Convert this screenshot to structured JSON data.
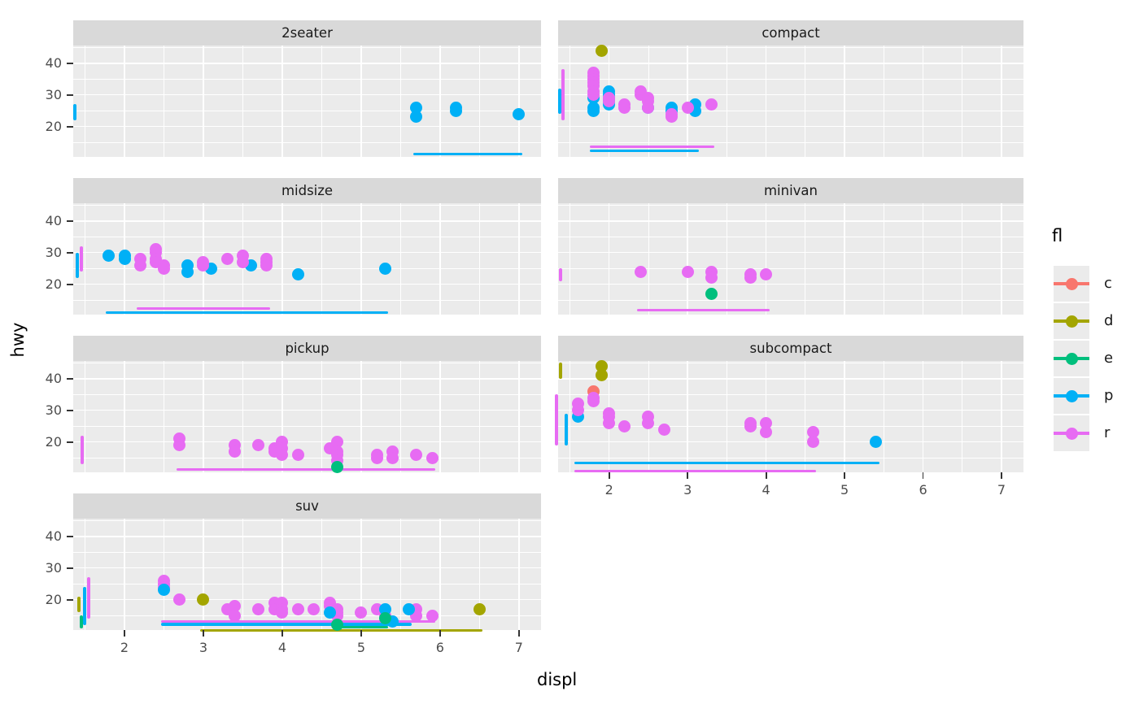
{
  "theme": {
    "page_bg": "#FFFFFF",
    "panel_bg": "#EBEBEB",
    "strip_bg": "#D9D9D9",
    "grid_color": "#FFFFFF",
    "tick_color": "#333333",
    "tick_label_color": "#4D4D4D",
    "legend_key_bg": "#EBEBEB"
  },
  "chart_data": {
    "type": "scatter",
    "title": "",
    "xlabel": "displ",
    "ylabel": "hwy",
    "x_ticks": [
      2,
      3,
      4,
      5,
      6,
      7
    ],
    "y_ticks": [
      20,
      30,
      40
    ],
    "x_minor_ticks": [
      1.5,
      2.5,
      3.5,
      4.5,
      5.5,
      6.5
    ],
    "y_minor_ticks": [
      15,
      25,
      35,
      45
    ],
    "x_domain": [
      1.35,
      7.28
    ],
    "y_domain": [
      10.4,
      45.6
    ],
    "grid": "on",
    "legend": {
      "title": "fl",
      "entries": [
        "c",
        "d",
        "e",
        "p",
        "r"
      ],
      "position": "right"
    },
    "series_colors": {
      "c": "#F8766D",
      "d": "#A3A500",
      "e": "#00BF7D",
      "p": "#00B0F6",
      "r": "#E76BF3"
    },
    "facets": [
      {
        "name": "2seater",
        "grid": [
          0,
          0
        ],
        "points": [
          [
            5.7,
            26,
            "p"
          ],
          [
            5.7,
            23,
            "p"
          ],
          [
            6.2,
            26,
            "p"
          ],
          [
            6.2,
            25,
            "p"
          ],
          [
            7.0,
            24,
            "p"
          ]
        ],
        "rugs_bottom": [
          {
            "fl": "p",
            "x0": 5.7,
            "x1": 7.0,
            "dy": 2
          }
        ],
        "rugs_left": [
          {
            "fl": "p",
            "y0": 23,
            "y1": 26,
            "dx": 0
          }
        ]
      },
      {
        "name": "compact",
        "grid": [
          0,
          1
        ],
        "points": [
          [
            1.9,
            44,
            "d"
          ],
          [
            1.8,
            29,
            "p"
          ],
          [
            1.8,
            26,
            "p"
          ],
          [
            1.8,
            25,
            "p"
          ],
          [
            2.0,
            31,
            "p"
          ],
          [
            2.0,
            30,
            "p"
          ],
          [
            2.0,
            29,
            "p"
          ],
          [
            2.0,
            28,
            "p"
          ],
          [
            2.0,
            27,
            "p"
          ],
          [
            2.5,
            26,
            "p"
          ],
          [
            2.8,
            26,
            "p"
          ],
          [
            2.8,
            25,
            "p"
          ],
          [
            3.1,
            27,
            "p"
          ],
          [
            3.1,
            25,
            "p"
          ],
          [
            1.8,
            37,
            "r"
          ],
          [
            1.8,
            36,
            "r"
          ],
          [
            1.8,
            35,
            "r"
          ],
          [
            1.8,
            34,
            "r"
          ],
          [
            1.8,
            33,
            "r"
          ],
          [
            1.8,
            31,
            "r"
          ],
          [
            1.8,
            30,
            "r"
          ],
          [
            2.0,
            29,
            "r"
          ],
          [
            2.0,
            28,
            "r"
          ],
          [
            2.2,
            27,
            "r"
          ],
          [
            2.2,
            26,
            "r"
          ],
          [
            2.4,
            31,
            "r"
          ],
          [
            2.4,
            30,
            "r"
          ],
          [
            2.5,
            29,
            "r"
          ],
          [
            2.5,
            28,
            "r"
          ],
          [
            2.5,
            26,
            "r"
          ],
          [
            2.8,
            24,
            "r"
          ],
          [
            2.8,
            23,
            "r"
          ],
          [
            3.0,
            26,
            "r"
          ],
          [
            3.3,
            27,
            "r"
          ]
        ],
        "rugs_bottom": [
          {
            "fl": "r",
            "x0": 1.8,
            "x1": 3.3,
            "dy": 11
          },
          {
            "fl": "p",
            "x0": 1.8,
            "x1": 3.1,
            "dy": 6
          }
        ],
        "rugs_left": [
          {
            "fl": "p",
            "y0": 25,
            "y1": 31,
            "dx": 0
          },
          {
            "fl": "r",
            "y0": 23,
            "y1": 37,
            "dx": 4
          }
        ]
      },
      {
        "name": "midsize",
        "grid": [
          1,
          0
        ],
        "points": [
          [
            1.8,
            29,
            "p"
          ],
          [
            2.0,
            29,
            "p"
          ],
          [
            2.0,
            28,
            "p"
          ],
          [
            2.8,
            26,
            "p"
          ],
          [
            2.8,
            24,
            "p"
          ],
          [
            3.1,
            25,
            "p"
          ],
          [
            3.6,
            26,
            "p"
          ],
          [
            4.2,
            23,
            "p"
          ],
          [
            5.3,
            25,
            "p"
          ],
          [
            2.2,
            28,
            "r"
          ],
          [
            2.2,
            26,
            "r"
          ],
          [
            2.4,
            31,
            "r"
          ],
          [
            2.4,
            30,
            "r"
          ],
          [
            2.4,
            28,
            "r"
          ],
          [
            2.4,
            27,
            "r"
          ],
          [
            2.5,
            26,
            "r"
          ],
          [
            2.5,
            25,
            "r"
          ],
          [
            3.0,
            27,
            "r"
          ],
          [
            3.0,
            26,
            "r"
          ],
          [
            3.3,
            28,
            "r"
          ],
          [
            3.5,
            29,
            "r"
          ],
          [
            3.5,
            27,
            "r"
          ],
          [
            3.8,
            28,
            "r"
          ],
          [
            3.8,
            27,
            "r"
          ],
          [
            3.8,
            26,
            "r"
          ]
        ],
        "rugs_bottom": [
          {
            "fl": "r",
            "x0": 2.2,
            "x1": 3.8,
            "dy": 6
          },
          {
            "fl": "p",
            "x0": 1.8,
            "x1": 5.3,
            "dy": 1
          }
        ],
        "rugs_left": [
          {
            "fl": "p",
            "y0": 23,
            "y1": 29,
            "dx": 3
          },
          {
            "fl": "r",
            "y0": 25,
            "y1": 31,
            "dx": 8
          }
        ]
      },
      {
        "name": "minivan",
        "grid": [
          1,
          1
        ],
        "points": [
          [
            2.4,
            24,
            "r"
          ],
          [
            3.0,
            24,
            "r"
          ],
          [
            3.3,
            24,
            "r"
          ],
          [
            3.3,
            22,
            "r"
          ],
          [
            3.8,
            23,
            "r"
          ],
          [
            3.8,
            22,
            "r"
          ],
          [
            4.0,
            23,
            "r"
          ],
          [
            3.3,
            17,
            "e"
          ]
        ],
        "rugs_bottom": [
          {
            "fl": "r",
            "x0": 2.4,
            "x1": 4.0,
            "dy": 4
          }
        ],
        "rugs_left": [
          {
            "fl": "r",
            "y0": 22,
            "y1": 24,
            "dx": 1
          }
        ]
      },
      {
        "name": "pickup",
        "grid": [
          2,
          0
        ],
        "points": [
          [
            2.7,
            21,
            "r"
          ],
          [
            2.7,
            19,
            "r"
          ],
          [
            3.4,
            19,
            "r"
          ],
          [
            3.4,
            17,
            "r"
          ],
          [
            3.7,
            19,
            "r"
          ],
          [
            3.9,
            18,
            "r"
          ],
          [
            3.9,
            17,
            "r"
          ],
          [
            4.0,
            20,
            "r"
          ],
          [
            4.0,
            18,
            "r"
          ],
          [
            4.0,
            16,
            "r"
          ],
          [
            4.2,
            16,
            "r"
          ],
          [
            4.6,
            18,
            "r"
          ],
          [
            4.7,
            20,
            "r"
          ],
          [
            4.7,
            17,
            "r"
          ],
          [
            4.7,
            16,
            "r"
          ],
          [
            4.7,
            14,
            "r"
          ],
          [
            5.2,
            16,
            "r"
          ],
          [
            5.2,
            15,
            "r"
          ],
          [
            5.4,
            17,
            "r"
          ],
          [
            5.4,
            15,
            "r"
          ],
          [
            5.7,
            16,
            "r"
          ],
          [
            5.9,
            15,
            "r"
          ],
          [
            4.7,
            12,
            "e"
          ]
        ],
        "rugs_bottom": [
          {
            "fl": "r",
            "x0": 2.7,
            "x1": 5.9,
            "dy": 2
          }
        ],
        "rugs_left": [
          {
            "fl": "r",
            "y0": 14,
            "y1": 21,
            "dx": 9
          }
        ]
      },
      {
        "name": "subcompact",
        "grid": [
          2,
          1
        ],
        "points": [
          [
            1.8,
            36,
            "c"
          ],
          [
            1.9,
            44,
            "d"
          ],
          [
            1.9,
            41,
            "d"
          ],
          [
            1.6,
            28,
            "p"
          ],
          [
            5.4,
            20,
            "p"
          ],
          [
            1.6,
            32,
            "r"
          ],
          [
            1.6,
            30,
            "r"
          ],
          [
            1.8,
            34,
            "r"
          ],
          [
            1.8,
            33,
            "r"
          ],
          [
            2.0,
            29,
            "r"
          ],
          [
            2.0,
            28,
            "r"
          ],
          [
            2.0,
            26,
            "r"
          ],
          [
            2.2,
            25,
            "r"
          ],
          [
            2.5,
            28,
            "r"
          ],
          [
            2.5,
            26,
            "r"
          ],
          [
            2.7,
            24,
            "r"
          ],
          [
            3.8,
            26,
            "r"
          ],
          [
            3.8,
            25,
            "r"
          ],
          [
            4.0,
            26,
            "r"
          ],
          [
            4.0,
            23,
            "r"
          ],
          [
            4.6,
            23,
            "r"
          ],
          [
            4.6,
            20,
            "r"
          ]
        ],
        "rugs_bottom": [
          {
            "fl": "p",
            "x0": 1.6,
            "x1": 5.4,
            "dy": 10
          },
          {
            "fl": "r",
            "x0": 1.6,
            "x1": 4.6,
            "dy": 0
          }
        ],
        "rugs_left": [
          {
            "fl": "r",
            "y0": 20,
            "y1": 34,
            "dx": -4
          },
          {
            "fl": "d",
            "y0": 41,
            "y1": 44,
            "dx": 1
          },
          {
            "fl": "p",
            "y0": 20,
            "y1": 28,
            "dx": 8
          }
        ]
      },
      {
        "name": "suv",
        "grid": [
          3,
          0
        ],
        "points": [
          [
            2.5,
            26,
            "r"
          ],
          [
            2.5,
            25,
            "r"
          ],
          [
            2.5,
            24,
            "r"
          ],
          [
            2.7,
            20,
            "r"
          ],
          [
            3.3,
            17,
            "r"
          ],
          [
            3.4,
            18,
            "r"
          ],
          [
            3.4,
            15,
            "r"
          ],
          [
            3.7,
            17,
            "r"
          ],
          [
            3.9,
            19,
            "r"
          ],
          [
            3.9,
            17,
            "r"
          ],
          [
            4.0,
            19,
            "r"
          ],
          [
            4.0,
            17,
            "r"
          ],
          [
            4.0,
            16,
            "r"
          ],
          [
            4.2,
            17,
            "r"
          ],
          [
            4.4,
            17,
            "r"
          ],
          [
            4.6,
            19,
            "r"
          ],
          [
            4.6,
            18,
            "r"
          ],
          [
            4.7,
            17,
            "r"
          ],
          [
            4.7,
            16,
            "r"
          ],
          [
            4.7,
            15,
            "r"
          ],
          [
            5.0,
            16,
            "r"
          ],
          [
            5.2,
            17,
            "r"
          ],
          [
            5.3,
            15,
            "r"
          ],
          [
            5.7,
            17,
            "r"
          ],
          [
            5.7,
            15,
            "r"
          ],
          [
            5.9,
            15,
            "r"
          ],
          [
            2.5,
            23,
            "p"
          ],
          [
            4.6,
            16,
            "p"
          ],
          [
            5.3,
            17,
            "p"
          ],
          [
            5.6,
            17,
            "p"
          ],
          [
            5.4,
            13,
            "p"
          ],
          [
            3.0,
            20,
            "d"
          ],
          [
            6.5,
            17,
            "d"
          ],
          [
            4.7,
            12,
            "e"
          ],
          [
            5.3,
            14,
            "e"
          ]
        ],
        "rugs_bottom": [
          {
            "fl": "r",
            "x0": 2.5,
            "x1": 5.9,
            "dy": 9
          },
          {
            "fl": "p",
            "x0": 2.5,
            "x1": 5.6,
            "dy": 5.5
          },
          {
            "fl": "e",
            "x0": 4.7,
            "x1": 5.3,
            "dy": 2
          },
          {
            "fl": "d",
            "x0": 3.0,
            "x1": 6.5,
            "dy": -2
          }
        ],
        "rugs_left": [
          {
            "fl": "d",
            "y0": 17,
            "y1": 20,
            "dx": 5
          },
          {
            "fl": "e",
            "y0": 12,
            "y1": 14,
            "dx": 8
          },
          {
            "fl": "p",
            "y0": 13,
            "y1": 23,
            "dx": 12
          },
          {
            "fl": "r",
            "y0": 15,
            "y1": 26,
            "dx": 17
          }
        ]
      }
    ]
  }
}
